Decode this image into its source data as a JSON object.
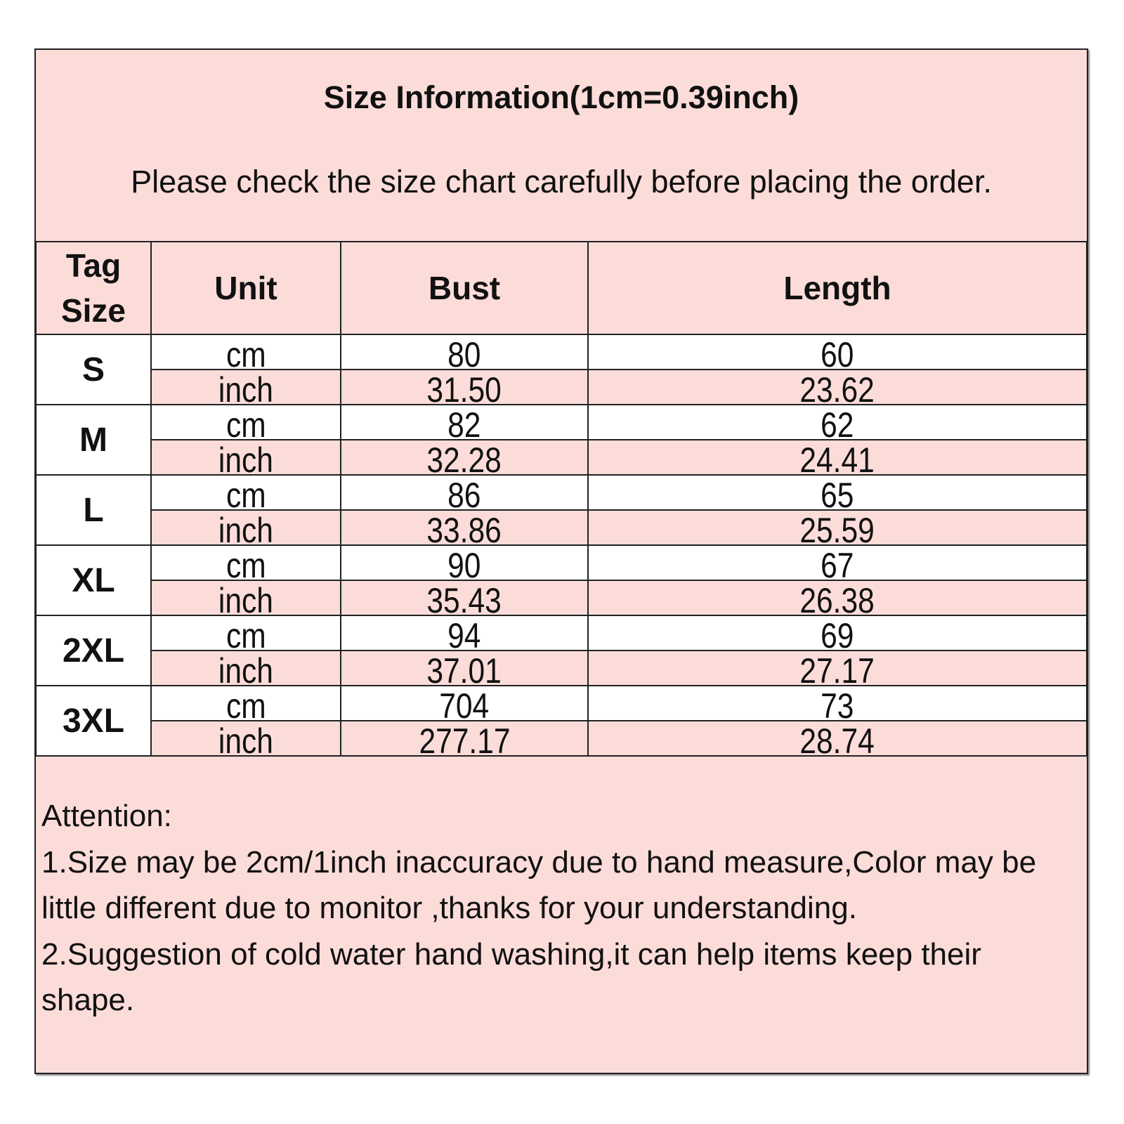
{
  "header": {
    "title": "Size Information(1cm=0.39inch)",
    "subtitle": "Please check the size chart carefully before placing the order."
  },
  "table": {
    "columns": [
      "Tag Size",
      "Unit",
      "Bust",
      "Length"
    ],
    "rows": [
      {
        "size": "S",
        "cm": {
          "unit": "cm",
          "bust": "80",
          "length": "60"
        },
        "inch": {
          "unit": "inch",
          "bust": "31.50",
          "length": "23.62"
        }
      },
      {
        "size": "M",
        "cm": {
          "unit": "cm",
          "bust": "82",
          "length": "62"
        },
        "inch": {
          "unit": "inch",
          "bust": "32.28",
          "length": "24.41"
        }
      },
      {
        "size": "L",
        "cm": {
          "unit": "cm",
          "bust": "86",
          "length": "65"
        },
        "inch": {
          "unit": "inch",
          "bust": "33.86",
          "length": "25.59"
        }
      },
      {
        "size": "XL",
        "cm": {
          "unit": "cm",
          "bust": "90",
          "length": "67"
        },
        "inch": {
          "unit": "inch",
          "bust": "35.43",
          "length": "26.38"
        }
      },
      {
        "size": "2XL",
        "cm": {
          "unit": "cm",
          "bust": "94",
          "length": "69"
        },
        "inch": {
          "unit": "inch",
          "bust": "37.01",
          "length": "27.17"
        }
      },
      {
        "size": "3XL",
        "cm": {
          "unit": "cm",
          "bust": "704",
          "length": "73"
        },
        "inch": {
          "unit": "inch",
          "bust": "277.17",
          "length": "28.74"
        }
      }
    ]
  },
  "attention": {
    "heading": "Attention:",
    "note1": "1.Size may be 2cm/1inch inaccuracy due to hand measure,Color may be little different due to monitor ,thanks for your understanding.",
    "note2": "2.Suggestion of cold water hand washing,it can help items keep their shape."
  },
  "colors": {
    "background": "#fbdcd9",
    "border": "#222222"
  }
}
